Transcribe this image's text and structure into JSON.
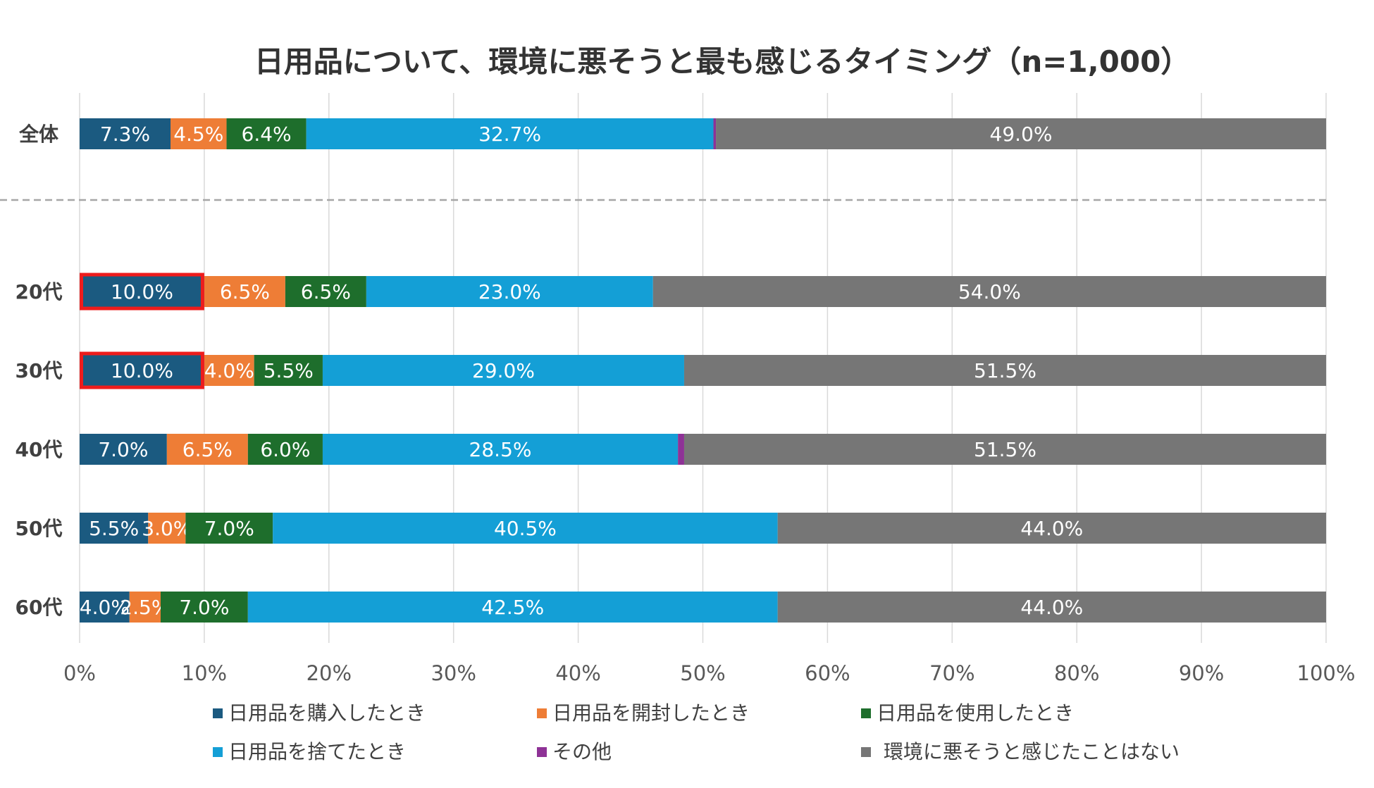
{
  "chart_data": {
    "type": "bar",
    "orientation": "horizontal",
    "stacked": "percent",
    "title": "日用品について、環境に悪そうと最も感じるタイミング（n=1,000）",
    "categories": [
      "全体",
      "20代",
      "30代",
      "40代",
      "50代",
      "60代"
    ],
    "series": [
      {
        "name": "日用品を購入したとき",
        "color": "#1b5a80",
        "values": [
          7.3,
          10.0,
          10.0,
          7.0,
          5.5,
          4.0
        ],
        "labels": [
          "7.3%",
          "10.0%",
          "10.0%",
          "7.0%",
          "5.5%",
          "4.0%"
        ]
      },
      {
        "name": "日用品を開封したとき",
        "color": "#ee7d36",
        "values": [
          4.5,
          6.5,
          4.0,
          6.5,
          3.0,
          2.5
        ],
        "labels": [
          "4.5%",
          "6.5%",
          "4.0%",
          "6.5%",
          "3.0%",
          "2.5%"
        ]
      },
      {
        "name": "日用品を使用したとき",
        "color": "#1e6e2c",
        "values": [
          6.4,
          6.5,
          5.5,
          6.0,
          7.0,
          7.0
        ],
        "labels": [
          "6.4%",
          "6.5%",
          "5.5%",
          "6.0%",
          "7.0%",
          "7.0%"
        ]
      },
      {
        "name": "日用品を捨てたとき",
        "color": "#149fd6",
        "values": [
          32.7,
          23.0,
          29.0,
          28.5,
          40.5,
          42.5
        ],
        "labels": [
          "32.7%",
          "23.0%",
          "29.0%",
          "28.5%",
          "40.5%",
          "42.5%"
        ]
      },
      {
        "name": "その他",
        "color": "#8e3296",
        "values": [
          0.2,
          0.0,
          0.0,
          0.5,
          0.0,
          0.0
        ],
        "labels": [
          "",
          "",
          "",
          "",
          "",
          ""
        ]
      },
      {
        "name": "環境に悪そうと感じたことはない",
        "color": "#767676",
        "values": [
          49.0,
          54.0,
          51.5,
          51.5,
          44.0,
          44.0
        ],
        "labels": [
          "49.0%",
          "54.0%",
          "51.5%",
          "51.5%",
          "44.0%",
          "44.0%"
        ]
      }
    ],
    "xlim": [
      0,
      100
    ],
    "xticks": [
      "0%",
      "10%",
      "20%",
      "30%",
      "40%",
      "50%",
      "60%",
      "70%",
      "80%",
      "90%",
      "100%"
    ],
    "grid": true,
    "separator_after_category": "全体",
    "highlighted": [
      {
        "category": "20代",
        "series": "日用品を購入したとき",
        "color": "#ee1c1c"
      },
      {
        "category": "30代",
        "series": "日用品を購入したとき",
        "color": "#ee1c1c"
      }
    ],
    "legend_position": "bottom"
  }
}
